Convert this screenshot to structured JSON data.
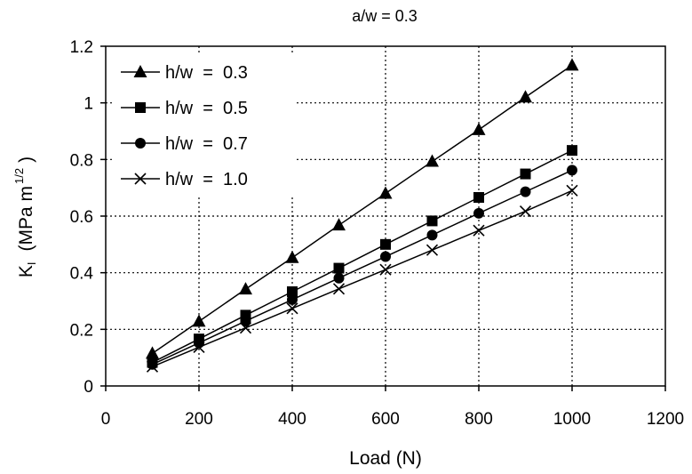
{
  "chart_data": {
    "type": "line",
    "title": "a/w = 0.3",
    "xlabel": "Load (N)",
    "ylabel": {
      "main": "K",
      "sub": "I",
      "unit": "(MPa m",
      "sup": "1/2",
      "close": ")"
    },
    "xlim": [
      0,
      1200
    ],
    "ylim": [
      0,
      1.2
    ],
    "x_ticks": [
      "0",
      "200",
      "400",
      "600",
      "800",
      "1000",
      "1200"
    ],
    "y_ticks": [
      "0",
      "0.2",
      "0.4",
      "0.6",
      "0.8",
      "1",
      "1.2"
    ],
    "grid": "dotted",
    "legend_position": "top-left",
    "x": [
      100,
      200,
      300,
      400,
      500,
      600,
      700,
      800,
      900,
      1000
    ],
    "series": [
      {
        "name": "h/w  =  0.3",
        "marker": "triangle",
        "values": [
          0.115,
          0.228,
          0.342,
          0.453,
          0.568,
          0.68,
          0.793,
          0.905,
          1.02,
          1.133
        ]
      },
      {
        "name": "h/w  =  0.5",
        "marker": "square",
        "values": [
          0.083,
          0.166,
          0.25,
          0.333,
          0.416,
          0.5,
          0.583,
          0.666,
          0.749,
          0.832
        ]
      },
      {
        "name": "h/w  =  0.7",
        "marker": "circle",
        "values": [
          0.076,
          0.152,
          0.229,
          0.305,
          0.381,
          0.457,
          0.533,
          0.61,
          0.686,
          0.762
        ]
      },
      {
        "name": "h/w  =  1.0",
        "marker": "cross",
        "values": [
          0.068,
          0.137,
          0.205,
          0.274,
          0.343,
          0.411,
          0.48,
          0.549,
          0.617,
          0.69
        ]
      }
    ]
  }
}
